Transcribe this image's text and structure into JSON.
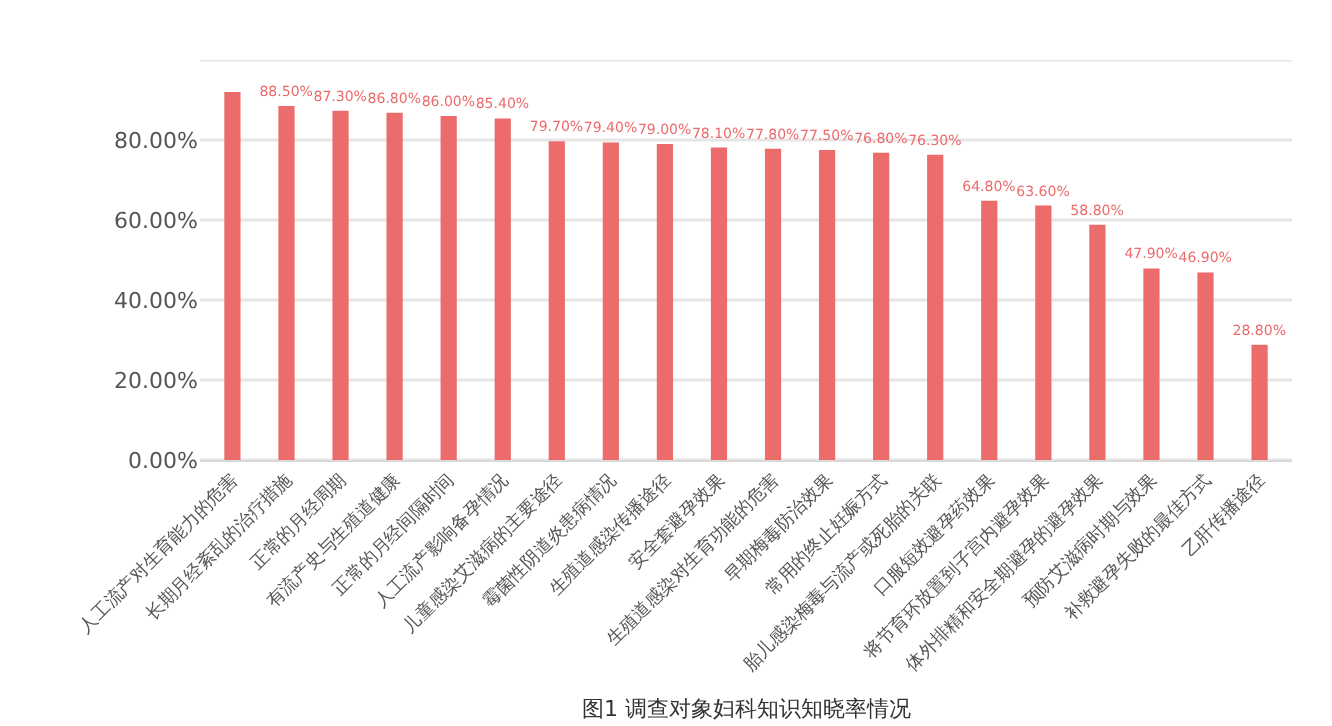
{
  "chart_data": {
    "type": "bar",
    "title": "图1 调查对象妇科知识知晓率情况",
    "categories": [
      "人工流产对生育能力的危害",
      "长期月经紊乱的治疗措施",
      "正常的月经周期",
      "有流产史与生殖道健康",
      "正常的月经间隔时间",
      "人工流产影响备孕情况",
      "儿童感染艾滋病的主要途径",
      "霉菌性阴道炎患病情况",
      "生殖道感染传播途径",
      "安全套避孕效果",
      "生殖道感染对生育功能的危害",
      "早期梅毒防治效果",
      "常用的终止妊娠方式",
      "胎儿感染梅毒与流产或死胎的关联",
      "口服短效避孕药效果",
      "将节育环放置到子宫内避孕效果",
      "体外排精和安全期避孕的避孕效果",
      "预防艾滋病时期与效果",
      "补救避孕失败的最佳方式",
      "乙肝传播途径"
    ],
    "values": [
      92,
      88.5,
      87.3,
      86.8,
      86.0,
      85.4,
      79.7,
      79.4,
      79.0,
      78.1,
      77.8,
      77.5,
      76.8,
      76.3,
      64.8,
      63.6,
      58.8,
      47.9,
      46.9,
      28.8
    ],
    "value_labels": [
      null,
      "88.50%",
      "87.30%",
      "86.80%",
      "86.00%",
      "85.40%",
      "79.70%",
      "79.40%",
      "79.00%",
      "78.10%",
      "77.80%",
      "77.50%",
      "76.80%",
      "76.30%",
      "64.80%",
      "63.60%",
      "58.80%",
      "47.90%",
      "46.90%",
      "28.80%"
    ],
    "color": "#ec6b6b",
    "ylim": [
      0,
      100
    ],
    "yticks": [
      {
        "value": 0,
        "label": "0.00%"
      },
      {
        "value": 20,
        "label": "20.00%"
      },
      {
        "value": 40,
        "label": "40.00%"
      },
      {
        "value": 60,
        "label": "60.00%"
      },
      {
        "value": 80,
        "label": "80.00%"
      },
      {
        "value": 100,
        "label": null
      }
    ],
    "grid": "y"
  }
}
